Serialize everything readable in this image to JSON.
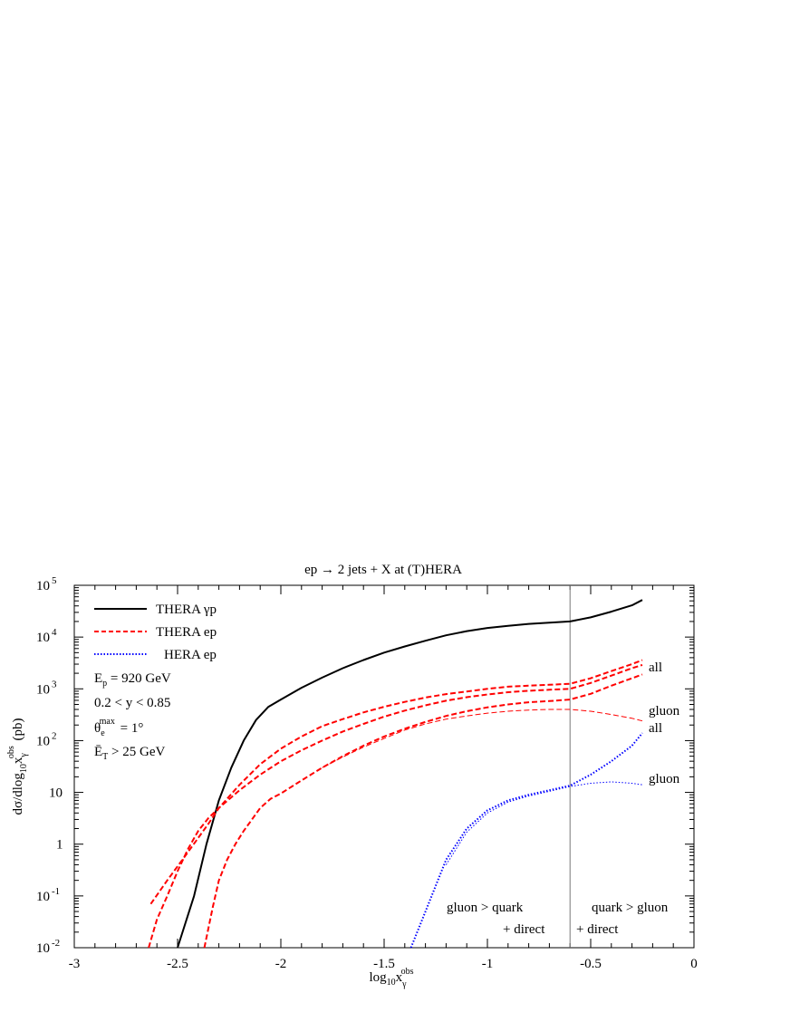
{
  "chart_data": {
    "type": "line",
    "title": "ep → 2 jets + X at (T)HERA",
    "xlabel": "log10xγobs",
    "ylabel": "dσ/dlog10xγobs (pb)",
    "xlim": [
      -3,
      0
    ],
    "ylim": [
      0.01,
      100000
    ],
    "yscale": "log",
    "grid": false,
    "legend_position": "top-left",
    "x_ticks": [
      "-3",
      "-2.5",
      "-2",
      "-1.5",
      "-1",
      "-0.5",
      "0"
    ],
    "y_ticks": [
      "10-2",
      "10-1",
      "1",
      "10",
      "102",
      "103",
      "104",
      "105"
    ],
    "legend": [
      {
        "label": "THERA γp",
        "style": "solid",
        "color": "#000000"
      },
      {
        "label": "THERA ep",
        "style": "dashed",
        "color": "#ff0000"
      },
      {
        "label": "HERA ep",
        "style": "dotted",
        "color": "#0000ff"
      }
    ],
    "cuts": [
      "Ep = 920 GeV",
      "0.2 < y < 0.85",
      "θemax = 1°",
      "ET > 25 GeV"
    ],
    "divider_x": -0.6,
    "region_labels": {
      "left_line1": "gluon > quark",
      "left_line2": "+ direct",
      "right_line1": "quark > gluon",
      "right_line2": "+ direct"
    },
    "curve_labels": {
      "thera_all": "all",
      "thera_gluon": "gluon",
      "hera_all": "all",
      "hera_gluon": "gluon"
    },
    "series": [
      {
        "name": "THERA γp",
        "color": "#000000",
        "style": "solid",
        "width": 2,
        "x": [
          -2.5,
          -2.42,
          -2.36,
          -2.3,
          -2.24,
          -2.18,
          -2.12,
          -2.06,
          -2.0,
          -1.9,
          -1.8,
          -1.7,
          -1.6,
          -1.5,
          -1.4,
          -1.3,
          -1.2,
          -1.1,
          -1.0,
          -0.9,
          -0.8,
          -0.7,
          -0.6,
          -0.5,
          -0.4,
          -0.3,
          -0.25
        ],
        "y": [
          0.01,
          0.1,
          1.0,
          7.0,
          30.0,
          100.0,
          250.0,
          450.0,
          620.0,
          1050.0,
          1650.0,
          2500.0,
          3600.0,
          5000.0,
          6600.0,
          8500.0,
          10800.0,
          13000.0,
          15000.0,
          16500.0,
          18000.0,
          19000.0,
          20000.0,
          24000.0,
          31000.0,
          41000.0,
          52000.0
        ]
      },
      {
        "name": "",
        "color": "#ff0000",
        "style": "dashed",
        "width": 2,
        "x": [
          -2.63,
          -2.55,
          -2.45,
          -2.35,
          -2.3,
          -2.2,
          -2.1,
          -2.0,
          -1.9,
          -1.8,
          -1.7,
          -1.6,
          -1.5,
          -1.4,
          -1.3,
          -1.2,
          -1.1,
          -1.0,
          -0.9,
          -0.8,
          -0.7,
          -0.6,
          -0.5,
          -0.4,
          -0.3,
          -0.25
        ],
        "y": [
          0.07,
          0.2,
          0.7,
          2.5,
          5.0,
          14.0,
          35.0,
          70.0,
          120.0,
          190.0,
          260.0,
          350.0,
          450.0,
          560.0,
          680.0,
          790.0,
          890.0,
          1000.0,
          1100.0,
          1150.0,
          1200.0,
          1250.0,
          1600.0,
          2200.0,
          3000.0,
          3600.0
        ]
      },
      {
        "name": "",
        "color": "#ff0000",
        "style": "dashed",
        "width": 2,
        "x": [
          -2.64,
          -2.6,
          -2.55,
          -2.5,
          -2.45,
          -2.4,
          -2.35,
          -2.3,
          -2.2,
          -2.1,
          -2.0,
          -1.9,
          -1.8,
          -1.7,
          -1.6,
          -1.5,
          -1.4,
          -1.3,
          -1.2,
          -1.1,
          -1.0,
          -0.9,
          -0.8,
          -0.7,
          -0.6,
          -0.5,
          -0.4,
          -0.3,
          -0.25
        ],
        "y": [
          0.01,
          0.035,
          0.1,
          0.3,
          0.8,
          1.8,
          3.2,
          5.0,
          11.0,
          22.0,
          40.0,
          65.0,
          100.0,
          150.0,
          210.0,
          290.0,
          380.0,
          480.0,
          590.0,
          690.0,
          780.0,
          860.0,
          920.0,
          960.0,
          1000.0,
          1300.0,
          1800.0,
          2500.0,
          2900.0
        ]
      },
      {
        "name": "",
        "color": "#ff0000",
        "style": "dashed",
        "width": 2,
        "x": [
          -2.37,
          -2.33,
          -2.3,
          -2.26,
          -2.22,
          -2.18,
          -2.14,
          -2.1,
          -2.05,
          -2.0,
          -1.9,
          -1.8,
          -1.7,
          -1.6,
          -1.5,
          -1.4,
          -1.3,
          -1.2,
          -1.1,
          -1.0,
          -0.9,
          -0.8,
          -0.7,
          -0.6,
          -0.5,
          -0.4,
          -0.3,
          -0.25
        ],
        "y": [
          0.01,
          0.06,
          0.2,
          0.5,
          1.0,
          1.8,
          3.0,
          5.0,
          7.5,
          9.5,
          17.0,
          30.0,
          50.0,
          80.0,
          120.0,
          170.0,
          230.0,
          300.0,
          370.0,
          440.0,
          500.0,
          550.0,
          580.0,
          620.0,
          800.0,
          1150.0,
          1600.0,
          1900.0
        ]
      },
      {
        "name": "",
        "color": "#ff0000",
        "style": "dashed",
        "width": 1,
        "x": [
          -1.8,
          -1.7,
          -1.6,
          -1.5,
          -1.4,
          -1.3,
          -1.2,
          -1.1,
          -1.0,
          -0.9,
          -0.8,
          -0.7,
          -0.6,
          -0.5,
          -0.4,
          -0.3,
          -0.25
        ],
        "y": [
          30.0,
          48.0,
          75.0,
          110.0,
          160.0,
          210.0,
          260.0,
          300.0,
          340.0,
          370.0,
          390.0,
          400.0,
          400.0,
          370.0,
          320.0,
          270.0,
          240.0
        ]
      },
      {
        "name": "",
        "color": "#0000ff",
        "style": "dotted",
        "width": 2,
        "x": [
          -1.37,
          -1.3,
          -1.2,
          -1.1,
          -1.0,
          -0.9,
          -0.8,
          -0.7,
          -0.6,
          -0.5,
          -0.4,
          -0.3,
          -0.25
        ],
        "y": [
          0.01,
          0.05,
          0.5,
          2.0,
          4.5,
          7.0,
          9.0,
          11.0,
          13.5,
          22.0,
          40.0,
          80.0,
          140.0
        ]
      },
      {
        "name": "",
        "color": "#0000ff",
        "style": "dotted",
        "width": 1,
        "x": [
          -1.2,
          -1.1,
          -1.0,
          -0.9,
          -0.8,
          -0.7,
          -0.6,
          -0.5,
          -0.4,
          -0.3,
          -0.25
        ],
        "y": [
          0.4,
          1.7,
          4.0,
          6.5,
          8.5,
          10.5,
          13.0,
          15.0,
          16.0,
          15.0,
          14.0
        ]
      }
    ]
  }
}
